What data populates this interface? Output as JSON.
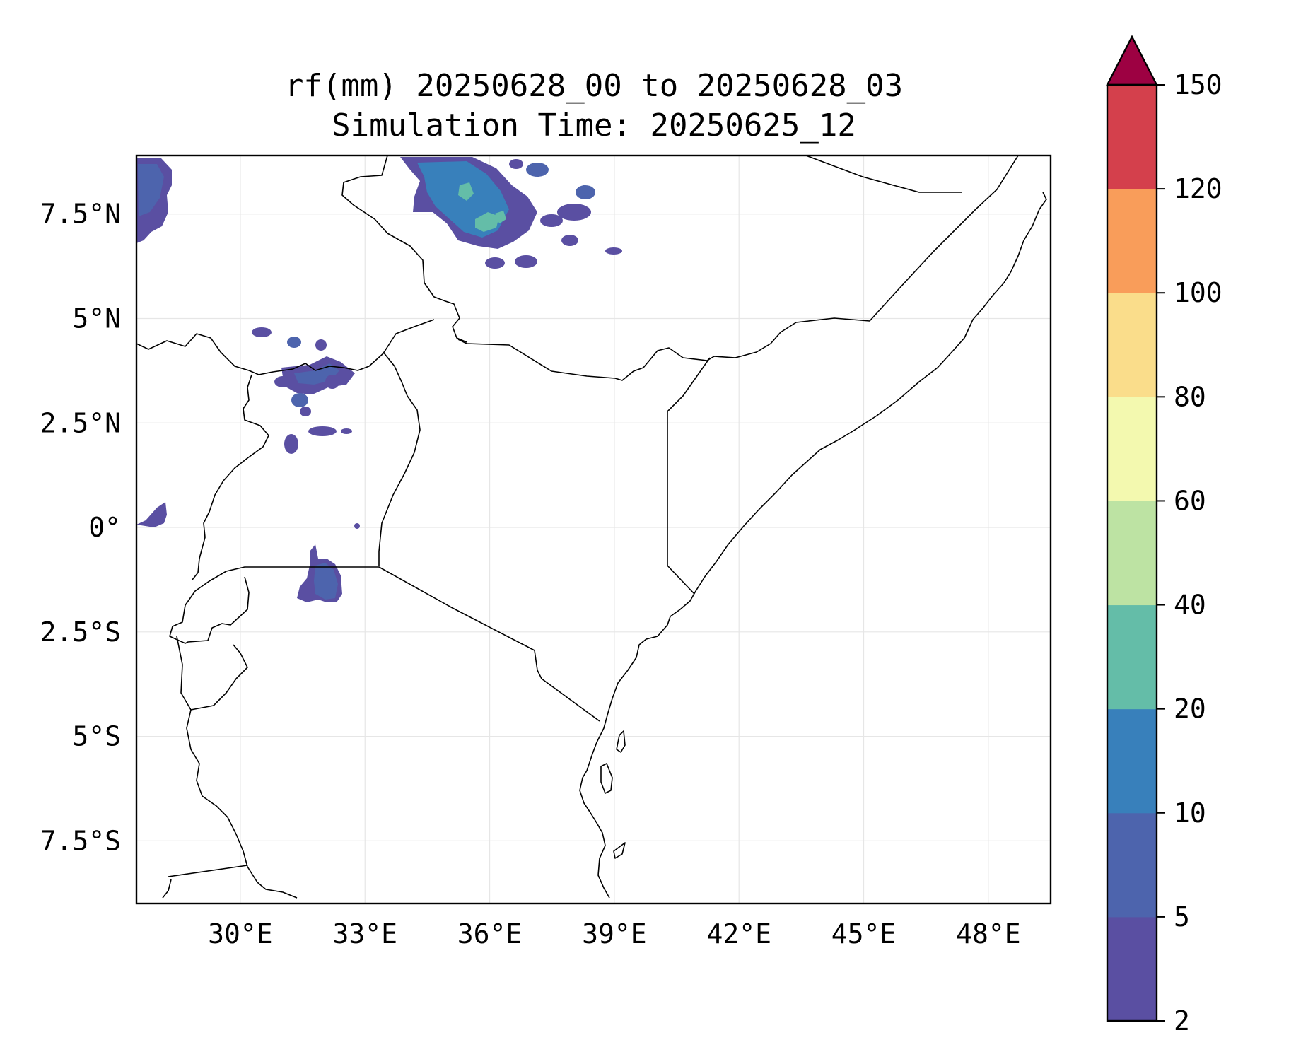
{
  "title": {
    "line1": "rf(mm) 20250628_00 to 20250628_03",
    "line2": "Simulation Time: 20250625_12"
  },
  "map": {
    "lon_range": [
      27.5,
      49.5
    ],
    "lat_range": [
      -9.0,
      8.9
    ],
    "x_ticks": [
      {
        "lon": 30,
        "label": "30°E"
      },
      {
        "lon": 33,
        "label": "33°E"
      },
      {
        "lon": 36,
        "label": "36°E"
      },
      {
        "lon": 39,
        "label": "39°E"
      },
      {
        "lon": 42,
        "label": "42°E"
      },
      {
        "lon": 45,
        "label": "45°E"
      },
      {
        "lon": 48,
        "label": "48°E"
      }
    ],
    "y_ticks": [
      {
        "lat": 7.5,
        "label": "7.5°N"
      },
      {
        "lat": 5,
        "label": "5°N"
      },
      {
        "lat": 2.5,
        "label": "2.5°N"
      },
      {
        "lat": 0,
        "label": "0°"
      },
      {
        "lat": -2.5,
        "label": "2.5°S"
      },
      {
        "lat": -5,
        "label": "5°S"
      },
      {
        "lat": -7.5,
        "label": "7.5°S"
      }
    ],
    "grid": true
  },
  "colorbar": {
    "levels": [
      "2",
      "5",
      "10",
      "20",
      "40",
      "60",
      "80",
      "100",
      "120",
      "150"
    ],
    "colors": [
      "#5a4fa2",
      "#4d64ad",
      "#3880bb",
      "#64bda8",
      "#bde3a3",
      "#f3f9af",
      "#fadd8b",
      "#f99d5a",
      "#d4404c"
    ],
    "extend_color": "#9d0142"
  }
}
